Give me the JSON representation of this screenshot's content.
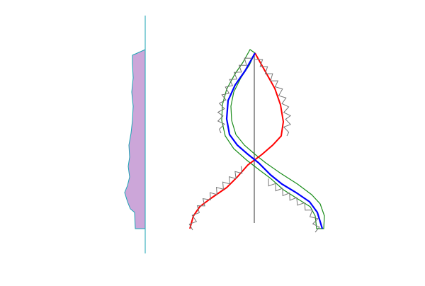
{
  "colors": {
    "background": "#ffffff",
    "profile_fill": "#cca6d9",
    "profile_edge": "#1aa3b3",
    "axis": "#555555",
    "red_curve": "#ff0000",
    "blue_curve": "#0000ff",
    "green_outline": "#1a8c1a",
    "hatch": "#777777"
  }
}
